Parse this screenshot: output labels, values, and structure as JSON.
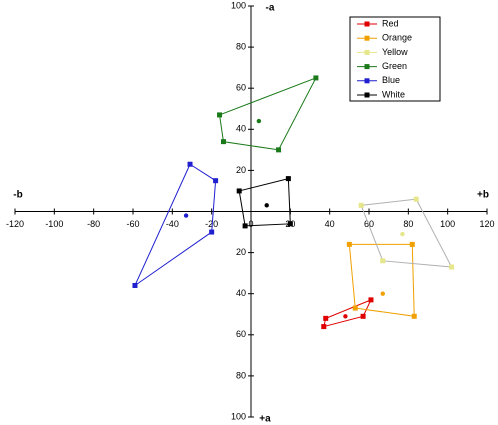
{
  "chart_data": {
    "type": "scatter",
    "x_axis_labels": {
      "negative": "-b",
      "positive": "+b"
    },
    "y_axis_labels": {
      "positive": "-a",
      "negative": "+a"
    },
    "xlim": [
      -120,
      120
    ],
    "xticks": [
      -120,
      -100,
      -80,
      -60,
      -40,
      -20,
      0,
      20,
      40,
      60,
      80,
      100,
      120
    ],
    "ylim": [
      -100,
      100
    ],
    "yticks": [
      100,
      80,
      60,
      40,
      20,
      {
        "value": -20,
        "label": "20"
      },
      {
        "value": -40,
        "label": "40"
      },
      {
        "value": -60,
        "label": "60"
      },
      {
        "value": -80,
        "label": "80"
      },
      {
        "value": -100,
        "label": "100"
      }
    ],
    "legend": "top-right",
    "series": [
      {
        "name": "Red",
        "color": "#e00000",
        "line_color": "#e00000",
        "x": [
          61,
          57,
          37,
          38
        ],
        "values": [
          -43,
          -51,
          -56,
          -52
        ],
        "center_x": 48,
        "center_y": -51
      },
      {
        "name": "Orange",
        "color": "#f0a000",
        "line_color": "#f0a000",
        "x": [
          50,
          82,
          83,
          53
        ],
        "values": [
          -16,
          -16,
          -51,
          -47
        ],
        "center_x": 67,
        "center_y": -40
      },
      {
        "name": "Yellow",
        "color": "#e6e68a",
        "line_color": "#b0b0b0",
        "x": [
          56,
          84,
          102,
          67
        ],
        "values": [
          3,
          6,
          -27,
          -24
        ],
        "center_x": 77,
        "center_y": -11
      },
      {
        "name": "Green",
        "color": "#1a7a1a",
        "line_color": "#1a7a1a",
        "x": [
          -16,
          33,
          14,
          -14
        ],
        "values": [
          47,
          65,
          30,
          34
        ],
        "center_x": 4,
        "center_y": 44
      },
      {
        "name": "Blue",
        "color": "#1f1fd0",
        "line_color": "#1f1fd0",
        "x": [
          -31,
          -18,
          -20,
          -59
        ],
        "values": [
          23,
          15,
          -10,
          -36
        ],
        "center_x": -33,
        "center_y": -2
      },
      {
        "name": "White",
        "color": "#000000",
        "line_color": "#000000",
        "x": [
          -6,
          19,
          20,
          -3
        ],
        "values": [
          10,
          16,
          -6,
          -7
        ],
        "center_x": 8,
        "center_y": 3
      }
    ]
  }
}
